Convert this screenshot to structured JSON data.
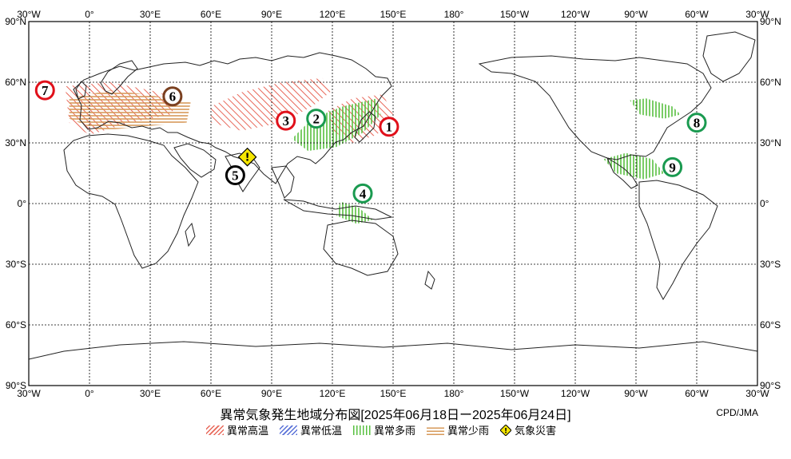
{
  "map": {
    "lon_labels": [
      "30°W",
      "0°",
      "30°E",
      "60°E",
      "90°E",
      "120°E",
      "150°E",
      "180°",
      "150°W",
      "120°W",
      "90°W",
      "60°W",
      "30°W"
    ],
    "lat_labels": [
      "90°N",
      "60°N",
      "30°N",
      "0°",
      "30°S",
      "60°S",
      "90°S"
    ]
  },
  "colors": {
    "hot": "#e8685a",
    "cold": "#5a72d8",
    "wet": "#58c040",
    "dry": "#d79a5a",
    "disaster": "#f5e600",
    "label_red": "#e0101a",
    "label_green": "#1a9a50",
    "label_brown": "#7a4020",
    "label_black": "#000000"
  },
  "markers": [
    {
      "num": "1",
      "type": "hot",
      "lon": 148,
      "lat": 38
    },
    {
      "num": "2",
      "type": "wet",
      "lon": 112,
      "lat": 42
    },
    {
      "num": "3",
      "type": "hot",
      "lon": 97,
      "lat": 41
    },
    {
      "num": "4",
      "type": "wet",
      "lon": 135,
      "lat": 5
    },
    {
      "num": "5",
      "type": "black",
      "lon": 72,
      "lat": 14
    },
    {
      "num": "6",
      "type": "dry",
      "lon": 41,
      "lat": 53
    },
    {
      "num": "7",
      "type": "hot",
      "lon": -22,
      "lat": 56
    },
    {
      "num": "8",
      "type": "wet",
      "lon": -60,
      "lat": 40
    },
    {
      "num": "9",
      "type": "wet",
      "lon": -72,
      "lat": 18
    }
  ],
  "regions": [
    {
      "type": "hot",
      "points": [
        [
          -12,
          58
        ],
        [
          10,
          60
        ],
        [
          30,
          56
        ],
        [
          45,
          52
        ],
        [
          40,
          44
        ],
        [
          20,
          40
        ],
        [
          0,
          34
        ],
        [
          -10,
          40
        ]
      ]
    },
    {
      "type": "dry",
      "points": [
        [
          -10,
          52
        ],
        [
          10,
          56
        ],
        [
          28,
          54
        ],
        [
          50,
          50
        ],
        [
          48,
          40
        ],
        [
          25,
          38
        ],
        [
          5,
          36
        ],
        [
          -10,
          42
        ]
      ]
    },
    {
      "type": "hot",
      "points": [
        [
          60,
          48
        ],
        [
          75,
          55
        ],
        [
          95,
          60
        ],
        [
          115,
          62
        ],
        [
          120,
          56
        ],
        [
          110,
          48
        ],
        [
          95,
          40
        ],
        [
          75,
          36
        ],
        [
          60,
          40
        ]
      ]
    },
    {
      "type": "hot",
      "points": [
        [
          118,
          46
        ],
        [
          130,
          52
        ],
        [
          145,
          54
        ],
        [
          150,
          44
        ],
        [
          142,
          34
        ],
        [
          130,
          30
        ],
        [
          120,
          36
        ]
      ]
    },
    {
      "type": "wet",
      "points": [
        [
          100,
          32
        ],
        [
          110,
          42
        ],
        [
          125,
          48
        ],
        [
          142,
          52
        ],
        [
          144,
          44
        ],
        [
          135,
          35
        ],
        [
          122,
          28
        ],
        [
          108,
          26
        ]
      ]
    },
    {
      "type": "wet",
      "points": [
        [
          124,
          1
        ],
        [
          133,
          -2
        ],
        [
          140,
          -8
        ],
        [
          132,
          -10
        ],
        [
          122,
          -6
        ]
      ]
    },
    {
      "type": "wet",
      "points": [
        [
          -93,
          51
        ],
        [
          -85,
          52
        ],
        [
          -72,
          48
        ],
        [
          -68,
          44
        ],
        [
          -76,
          42
        ],
        [
          -88,
          44
        ]
      ]
    },
    {
      "type": "wet",
      "points": [
        [
          -106,
          22
        ],
        [
          -95,
          25
        ],
        [
          -82,
          22
        ],
        [
          -76,
          15
        ],
        [
          -86,
          12
        ],
        [
          -100,
          15
        ]
      ]
    }
  ],
  "disaster": {
    "glyph": "!",
    "lon": 78,
    "lat": 23
  },
  "title": "異常気象発生地域分布図[2025年06月18日ー2025年06月24日]",
  "credit": "CPD/JMA",
  "legend": [
    {
      "key": "hot",
      "label": "異常高温"
    },
    {
      "key": "cold",
      "label": "異常低温"
    },
    {
      "key": "wet",
      "label": "異常多雨"
    },
    {
      "key": "dry",
      "label": "異常少雨"
    },
    {
      "key": "disaster",
      "label": "気象災害"
    }
  ]
}
